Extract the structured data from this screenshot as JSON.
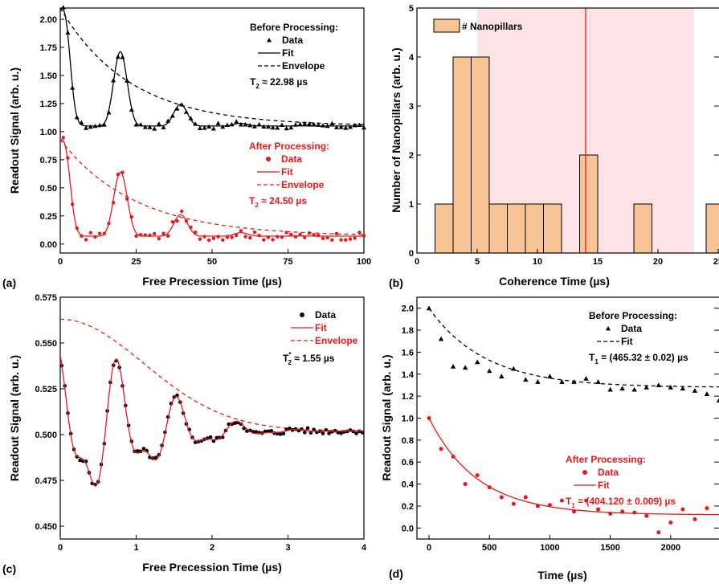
{
  "chart_data": [
    {
      "type": "scatter",
      "panel_label": "(a)",
      "xlabel": "Free Precession Time (µs)",
      "ylabel": "Readout Signal (arb. u.)",
      "xlim": [
        0,
        100
      ],
      "ylim": [
        -0.08,
        2.1
      ],
      "xticks": [
        0,
        25,
        50,
        75,
        100
      ],
      "yticks": [
        0.0,
        0.25,
        0.5,
        0.75,
        1.0,
        1.25,
        1.5,
        1.75,
        2.0
      ],
      "groups": [
        {
          "title": "Before Processing:",
          "color": "#000000",
          "data_label": "Data",
          "fit_label": "Fit",
          "env_label": "Envelope",
          "t_label": "T",
          "t_sub": "2",
          "t_value": "≈ 22.98 µs",
          "marker": "triangle",
          "baseline": 1.05,
          "amp": 1.05,
          "tau": 22.98,
          "beat": 0.0085,
          "phase": 0.0
        },
        {
          "title": "After Processing:",
          "color": "#e8191b",
          "data_label": "Data",
          "fit_label": "Fit",
          "env_label": "Envelope",
          "t_label": "T",
          "t_sub": "2",
          "t_value": "≈ 24.50 µs",
          "marker": "circle",
          "baseline": 0.07,
          "amp": 0.86,
          "tau": 24.5,
          "beat": 0.0085,
          "phase": 0.0
        }
      ]
    },
    {
      "type": "bar",
      "panel_label": "(b)",
      "xlabel": "Coherence Time (µs)",
      "ylabel": "Number of Nanopillars (arb. u.)",
      "xlim": [
        0,
        26
      ],
      "ylim": [
        0,
        5
      ],
      "xticks": [
        0,
        5,
        10,
        15,
        20,
        25
      ],
      "yticks": [
        0,
        1,
        2,
        3,
        4,
        5
      ],
      "legend": "# Nanopillars",
      "bin_width": 1.5,
      "bars": [
        {
          "x0": 1.5,
          "value": 1
        },
        {
          "x0": 3.0,
          "value": 4
        },
        {
          "x0": 4.5,
          "value": 4
        },
        {
          "x0": 6.0,
          "value": 1
        },
        {
          "x0": 7.5,
          "value": 1
        },
        {
          "x0": 9.0,
          "value": 1
        },
        {
          "x0": 10.5,
          "value": 1
        },
        {
          "x0": 13.5,
          "value": 2
        },
        {
          "x0": 18.0,
          "value": 1
        },
        {
          "x0": 24.0,
          "value": 1
        }
      ],
      "shaded_range": [
        5,
        23
      ],
      "vline": 14,
      "bar_color": "#f7c595",
      "shade_color": "#fde3e6",
      "line_color": "#e8191b"
    },
    {
      "type": "scatter",
      "panel_label": "(c)",
      "xlabel": "Free Precession Time (µs)",
      "ylabel": "Readout Signal (arb. u.)",
      "xlim": [
        0,
        4
      ],
      "ylim": [
        0.443,
        0.575
      ],
      "xticks": [
        0,
        1,
        2,
        3,
        4
      ],
      "yticks": [
        0.45,
        0.475,
        0.5,
        0.525,
        0.55,
        0.575
      ],
      "legend": {
        "data_label": "Data",
        "fit_label": "Fit",
        "env_label": "Envelope",
        "t_label": "T",
        "t_sub": "2",
        "t_sup": "*",
        "t_value": "≈ 1.55 µs"
      },
      "baseline": 0.502,
      "env_amp": 0.061,
      "tau": 1.55,
      "data_color": "#000000",
      "fit_color": "#e8191b"
    },
    {
      "type": "scatter",
      "panel_label": "(d)",
      "xlabel": "Time (µs)",
      "ylabel": "Readout Signal (arb. u.)",
      "xlim": [
        -100,
        2400
      ],
      "ylim": [
        -0.1,
        2.1
      ],
      "xticks": [
        0,
        500,
        1000,
        1500,
        2000
      ],
      "yticks": [
        0.0,
        0.2,
        0.4,
        0.6,
        0.8,
        1.0,
        1.2,
        1.4,
        1.6,
        1.8,
        2.0
      ],
      "groups": [
        {
          "title": "Before Processing:",
          "color": "#000000",
          "data_label": "Data",
          "fit_label": "Fit",
          "t_label": "T",
          "t_sub": "1",
          "t_value": "= (465.32 ± 0.02) µs",
          "marker": "triangle",
          "baseline": 1.28,
          "amp": 0.72,
          "tau": 465.32,
          "x": [
            0,
            100,
            200,
            300,
            400,
            500,
            600,
            700,
            800,
            900,
            1000,
            1100,
            1200,
            1300,
            1400,
            1500,
            1600,
            1700,
            1800,
            1900,
            2000,
            2100,
            2200,
            2300,
            2400
          ],
          "y": [
            2.0,
            1.72,
            1.47,
            1.46,
            1.51,
            1.43,
            1.38,
            1.45,
            1.35,
            1.33,
            1.38,
            1.33,
            1.33,
            1.36,
            1.33,
            1.26,
            1.27,
            1.26,
            1.28,
            1.3,
            1.28,
            1.27,
            1.25,
            1.22,
            1.16
          ]
        },
        {
          "title": "After Processing:",
          "color": "#e8191b",
          "data_label": "Data",
          "fit_label": "Fit",
          "t_label": "T",
          "t_sub": "1",
          "t_value": "= (404.120 ± 0.009) µs",
          "marker": "circle",
          "baseline": 0.12,
          "amp": 0.88,
          "tau": 404.12,
          "x": [
            0,
            100,
            200,
            300,
            400,
            500,
            600,
            700,
            800,
            900,
            1000,
            1100,
            1200,
            1300,
            1400,
            1500,
            1600,
            1700,
            1800,
            1900,
            2000,
            2100,
            2200,
            2300
          ],
          "y": [
            1.0,
            0.72,
            0.65,
            0.4,
            0.48,
            0.37,
            0.28,
            0.22,
            0.28,
            0.2,
            0.21,
            0.25,
            0.15,
            0.25,
            0.17,
            0.13,
            0.15,
            0.14,
            0.11,
            -0.04,
            0.05,
            0.17,
            0.08,
            0.18
          ]
        }
      ]
    }
  ]
}
